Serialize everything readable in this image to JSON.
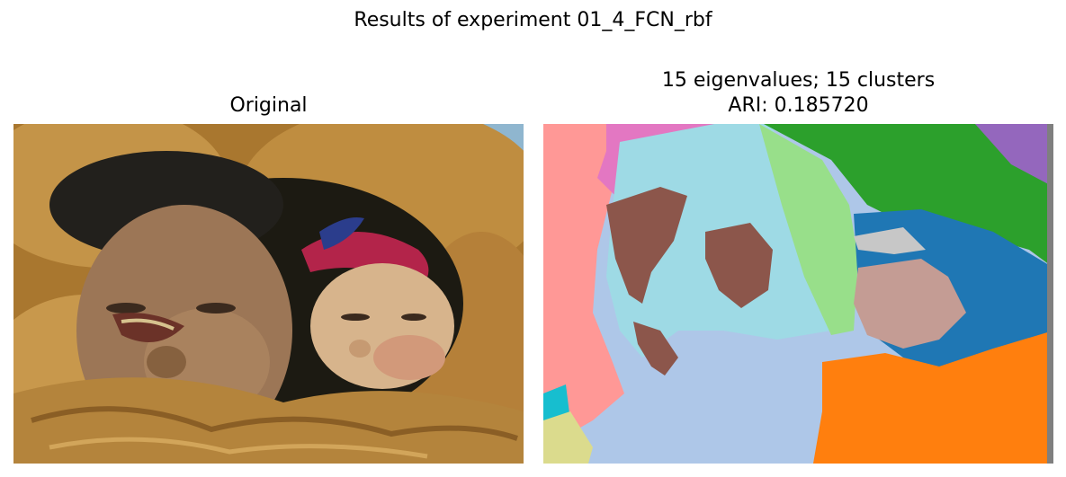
{
  "figure": {
    "suptitle": "Results of experiment 01_4_FCN_rbf"
  },
  "left_panel": {
    "title": "Original",
    "image": "photo of elderly woman and child in fur-lined parka hood"
  },
  "right_panel": {
    "title_line1": "15 eigenvalues; 15 clusters",
    "title_line2": "ARI: 0.185720",
    "image": "segmentation map with 15 cluster colors"
  },
  "colors": {
    "fur": "#b8863c",
    "fur_dark": "#7a5420",
    "skin": "#9c7656",
    "baby_skin": "#d7b48c",
    "hat_red": "#b3244a",
    "hat_blue": "#2b3d8c",
    "sky": "#8fb6cf",
    "seg_pink": "#ff9896",
    "seg_magenta": "#e377c2",
    "seg_lightblue": "#9edae5",
    "seg_green": "#2ca02c",
    "seg_lightgreen": "#98df8a",
    "seg_purple": "#9467bd",
    "seg_brown": "#8c564b",
    "seg_periwinkle": "#aec7e8",
    "seg_steelblue": "#1f77b4",
    "seg_orange": "#ff7f0e",
    "seg_rosybrown": "#c49c94",
    "seg_cyan": "#17becf",
    "seg_khaki": "#dbdb8d",
    "seg_gray": "#7f7f7f",
    "seg_silver": "#c7c7c7"
  }
}
